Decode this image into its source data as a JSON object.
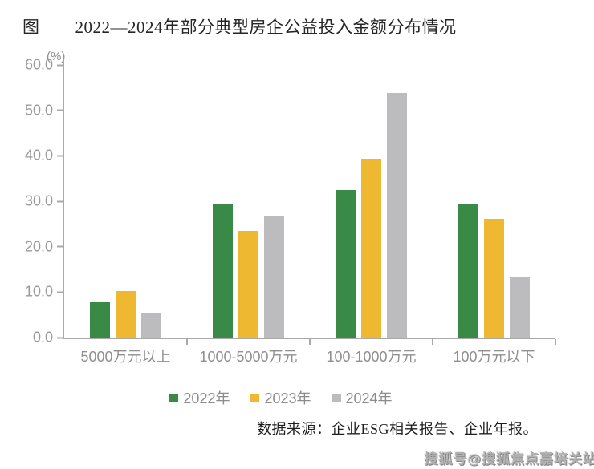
{
  "title": {
    "prefix": "图",
    "text": "2022—2024年部分典型房企公益投入金额分布情况"
  },
  "chart_data": {
    "type": "bar",
    "title": "2022—2024年部分典型房企公益投入金额分布情况",
    "unit_label": "(%)",
    "xlabel": "",
    "ylabel": "%",
    "ylim": [
      0,
      60
    ],
    "y_ticks": [
      "60.0",
      "50.0",
      "40.0",
      "30.0",
      "20.0",
      "10.0",
      "0.0"
    ],
    "grid": false,
    "legend_position": "bottom",
    "categories": [
      "5000万元以上",
      "1000-5000万元",
      "100-1000万元",
      "100万元以下"
    ],
    "series": [
      {
        "name": "2022年",
        "color": "#3a8a47",
        "values": [
          7.8,
          29.4,
          32.4,
          29.4
        ]
      },
      {
        "name": "2023年",
        "color": "#eeb830",
        "values": [
          10.3,
          23.5,
          39.4,
          26.2
        ]
      },
      {
        "name": "2024年",
        "color": "#bcbcbe",
        "values": [
          5.3,
          26.9,
          53.8,
          13.3
        ]
      }
    ]
  },
  "source_note": "数据来源：企业ESG相关报告、企业年报。",
  "watermark": "搜狐号@搜狐焦点嘉培关站",
  "colors": {
    "axis": "#a9a9a9",
    "tick_text": "#9a9a9a",
    "title_text": "#262626",
    "source_text": "#1f1f1f",
    "watermark_text": "#b3b3b3",
    "series_2022": "#3a8a47",
    "series_2023": "#eeb830",
    "series_2024": "#bcbcbe"
  }
}
